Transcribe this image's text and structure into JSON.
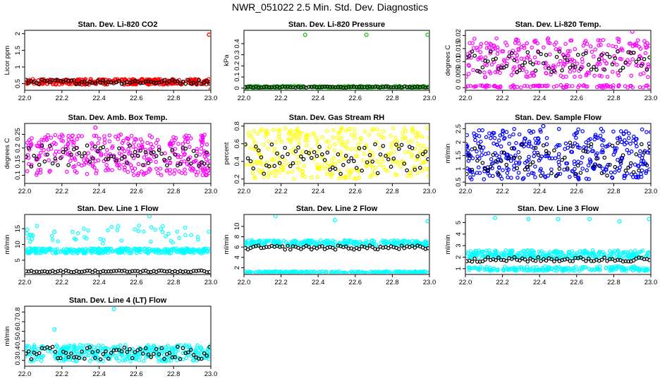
{
  "figure": {
    "title": "NWR_051022  2.5 Min. Std. Dev. Diagnostics"
  },
  "colors": {
    "red": "#ff0000",
    "green": "#1fbf1f",
    "magenta": "#ff00ff",
    "yellow": "#ffff00",
    "blue": "#0000ff",
    "cyan": "#00ffff",
    "black": "#000000"
  },
  "chart_data": [
    {
      "id": "co2",
      "type": "scatter",
      "title": "Stan. Dev. Li-820 CO2",
      "ylabel": "Licor ppm",
      "xlim": [
        22.0,
        23.0
      ],
      "ylim": [
        0.3,
        2.1
      ],
      "xticks": [
        "22.0",
        "22.2",
        "22.4",
        "22.6",
        "22.8",
        "23.0"
      ],
      "yticks": [
        0.5,
        1.0,
        1.5,
        2.0
      ],
      "color": "red",
      "band_series": [
        {
          "lo": 0.47,
          "hi": 0.64,
          "n": 340
        }
      ],
      "black_series": {
        "lo": 0.49,
        "hi": 0.62,
        "n": 70
      },
      "outliers": [
        {
          "x": 22.99,
          "y": 1.97
        },
        {
          "x": 23.0,
          "y": 0.33
        }
      ]
    },
    {
      "id": "pressure",
      "type": "scatter",
      "title": "Stan. Dev. Li-820 Pressure",
      "ylabel": "kPa",
      "xlim": [
        22.0,
        23.0
      ],
      "ylim": [
        -0.02,
        0.52
      ],
      "xticks": [
        "22.0",
        "22.2",
        "22.4",
        "22.6",
        "22.8",
        "23.0"
      ],
      "yticks": [
        0.0,
        0.1,
        0.2,
        0.3,
        0.4
      ],
      "color": "green",
      "band_series": [
        {
          "lo": 0.0,
          "hi": 0.02,
          "n": 300
        }
      ],
      "black_series": {
        "lo": 0.004,
        "hi": 0.014,
        "n": 70
      },
      "outliers": [
        {
          "x": 22.33,
          "y": 0.48
        },
        {
          "x": 22.66,
          "y": 0.48
        },
        {
          "x": 22.99,
          "y": 0.48
        }
      ]
    },
    {
      "id": "temp",
      "type": "scatter",
      "title": "Stan. Dev. Li-820 Temp.",
      "ylabel": "degrees C",
      "xlim": [
        22.0,
        23.0
      ],
      "ylim": [
        -0.001,
        0.022
      ],
      "xticks": [
        "22.0",
        "22.2",
        "22.4",
        "22.6",
        "22.8",
        "23.0"
      ],
      "yticks": [
        0.0,
        0.005,
        0.01,
        0.015,
        0.02
      ],
      "color": "magenta",
      "band_series": [
        {
          "lo": 0.004,
          "hi": 0.019,
          "n": 260
        },
        {
          "lo": 0.0,
          "hi": 0.001,
          "n": 90
        }
      ],
      "black_series": {
        "lo": 0.006,
        "hi": 0.014,
        "n": 70
      },
      "outliers": [
        {
          "x": 22.9,
          "y": 0.0215
        }
      ]
    },
    {
      "id": "ambbox",
      "type": "scatter",
      "title": "Stan. Dev. Amb. Box Temp.",
      "ylabel": "degrees C",
      "xlim": [
        22.0,
        23.0
      ],
      "ylim": [
        0.07,
        0.29
      ],
      "xticks": [
        "22.0",
        "22.2",
        "22.4",
        "22.6",
        "22.8",
        "23.0"
      ],
      "yticks": [
        0.1,
        0.15,
        0.2,
        0.25
      ],
      "color": "magenta",
      "band_series": [
        {
          "lo": 0.1,
          "hi": 0.25,
          "n": 340
        }
      ],
      "black_series": {
        "lo": 0.13,
        "hi": 0.21,
        "n": 70
      },
      "outliers": [
        {
          "x": 22.38,
          "y": 0.275
        }
      ]
    },
    {
      "id": "rh",
      "type": "scatter",
      "title": "Stan. Dev. Gas Stream RH",
      "ylabel": "percent",
      "xlim": [
        22.0,
        23.0
      ],
      "ylim": [
        0.15,
        0.83
      ],
      "xticks": [
        "22.0",
        "22.2",
        "22.4",
        "22.6",
        "22.8",
        "23.0"
      ],
      "yticks": [
        0.2,
        0.4,
        0.6,
        0.8
      ],
      "color": "yellow",
      "band_series": [
        {
          "lo": 0.2,
          "hi": 0.78,
          "n": 330
        }
      ],
      "black_series": {
        "lo": 0.25,
        "hi": 0.6,
        "n": 70
      },
      "outliers": [
        {
          "x": 22.99,
          "y": 0.78
        }
      ]
    },
    {
      "id": "sample",
      "type": "scatter",
      "title": "Stan. Dev. Sample Flow",
      "ylabel": "ml/min",
      "xlim": [
        22.0,
        23.0
      ],
      "ylim": [
        0.45,
        2.7
      ],
      "xticks": [
        "22.0",
        "22.2",
        "22.4",
        "22.6",
        "22.8",
        "23.0"
      ],
      "yticks": [
        0.5,
        1.0,
        1.5,
        2.0,
        2.5
      ],
      "color": "blue",
      "band_series": [
        {
          "lo": 0.6,
          "hi": 2.5,
          "n": 360
        }
      ],
      "black_series": {
        "lo": 0.7,
        "hi": 2.0,
        "n": 70
      },
      "outliers": [
        {
          "x": 22.42,
          "y": 2.6
        }
      ]
    },
    {
      "id": "line1",
      "type": "scatter",
      "title": "Stan. Dev. Line 1 Flow",
      "ylabel": "ml/min",
      "xlim": [
        22.0,
        23.0
      ],
      "ylim": [
        0.5,
        19.5
      ],
      "xticks": [
        "22.0",
        "22.2",
        "22.4",
        "22.6",
        "22.8",
        "23.0"
      ],
      "yticks": [
        5,
        10,
        15
      ],
      "color": "cyan",
      "band_series": [
        {
          "lo": 7.2,
          "hi": 8.8,
          "n": 300
        },
        {
          "lo": 10.0,
          "hi": 16.0,
          "n": 50
        }
      ],
      "black_series": {
        "lo": 1.2,
        "hi": 1.8,
        "n": 70
      },
      "outliers": [
        {
          "x": 22.67,
          "y": 19.0
        },
        {
          "x": 22.16,
          "y": 14.0
        }
      ]
    },
    {
      "id": "line2",
      "type": "scatter",
      "title": "Stan. Dev. Line 2 Flow",
      "ylabel": "ml/min",
      "xlim": [
        22.0,
        23.0
      ],
      "ylim": [
        0.7,
        12.3
      ],
      "xticks": [
        "22.0",
        "22.2",
        "22.4",
        "22.6",
        "22.8",
        "23.0"
      ],
      "yticks": [
        2,
        4,
        6,
        8,
        10
      ],
      "color": "cyan",
      "band_series": [
        {
          "lo": 6.3,
          "hi": 7.3,
          "n": 260
        },
        {
          "lo": 0.9,
          "hi": 1.3,
          "n": 200
        }
      ],
      "black_series": {
        "lo": 5.5,
        "hi": 6.3,
        "n": 70
      },
      "outliers": [
        {
          "x": 22.17,
          "y": 12.0
        },
        {
          "x": 22.49,
          "y": 11.2
        },
        {
          "x": 22.99,
          "y": 11.0
        }
      ]
    },
    {
      "id": "line3",
      "type": "scatter",
      "title": "Stan. Dev. Line 3 Flow",
      "ylabel": "ml/min",
      "xlim": [
        22.0,
        23.0
      ],
      "ylim": [
        0.5,
        5.7
      ],
      "xticks": [
        "22.0",
        "22.2",
        "22.4",
        "22.6",
        "22.8",
        "23.0"
      ],
      "yticks": [
        1,
        2,
        3,
        4,
        5
      ],
      "color": "cyan",
      "band_series": [
        {
          "lo": 1.9,
          "hi": 2.6,
          "n": 280
        },
        {
          "lo": 0.8,
          "hi": 1.2,
          "n": 180
        }
      ],
      "black_series": {
        "lo": 1.6,
        "hi": 2.0,
        "n": 70
      },
      "outliers": [
        {
          "x": 22.16,
          "y": 5.4
        },
        {
          "x": 22.34,
          "y": 5.3
        },
        {
          "x": 22.5,
          "y": 5.3
        },
        {
          "x": 22.67,
          "y": 5.3
        },
        {
          "x": 22.83,
          "y": 5.1
        },
        {
          "x": 22.99,
          "y": 5.3
        }
      ]
    },
    {
      "id": "line4",
      "type": "scatter",
      "title": "Stan. Dev. Line 4 (LT) Flow",
      "ylabel": "ml/min",
      "xlim": [
        22.0,
        23.0
      ],
      "ylim": [
        0.24,
        0.86
      ],
      "xticks": [
        "22.0",
        "22.2",
        "22.4",
        "22.6",
        "22.8",
        "23.0"
      ],
      "yticks": [
        0.3,
        0.4,
        0.5,
        0.6,
        0.7,
        0.8
      ],
      "color": "cyan",
      "band_series": [
        {
          "lo": 0.29,
          "hi": 0.46,
          "n": 340
        }
      ],
      "black_series": {
        "lo": 0.31,
        "hi": 0.44,
        "n": 70
      },
      "outliers": [
        {
          "x": 22.48,
          "y": 0.83
        },
        {
          "x": 22.16,
          "y": 0.62
        }
      ]
    }
  ]
}
